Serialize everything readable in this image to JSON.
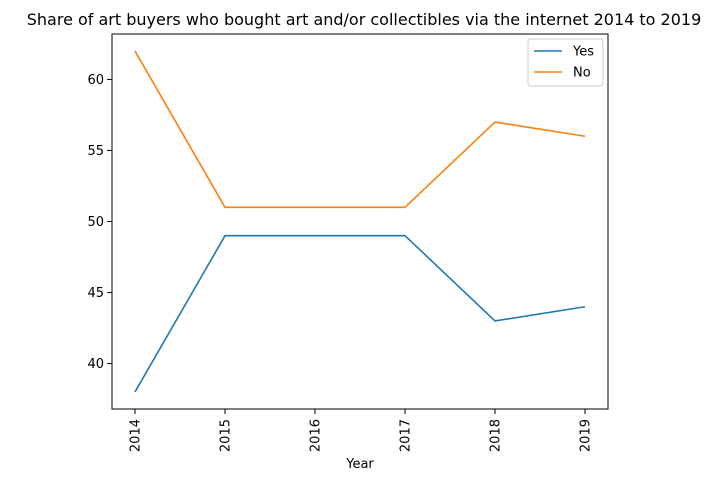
{
  "chart_data": {
    "type": "line",
    "title": "Share of art buyers who bought art and/or collectibles via the internet 2014 to 2019",
    "xlabel": "Year",
    "ylabel": "",
    "x": [
      "2014",
      "2015",
      "2016",
      "2017",
      "2018",
      "2019"
    ],
    "ylim": [
      36.8,
      63.2
    ],
    "yticks": [
      40,
      45,
      50,
      55,
      60
    ],
    "grid": false,
    "legend_position": "upper-right",
    "series": [
      {
        "name": "Yes",
        "color": "#1f77b4",
        "values": [
          38,
          49,
          49,
          49,
          43,
          44
        ]
      },
      {
        "name": "No",
        "color": "#ff7f0e",
        "values": [
          62,
          51,
          51,
          51,
          57,
          56
        ]
      }
    ]
  }
}
